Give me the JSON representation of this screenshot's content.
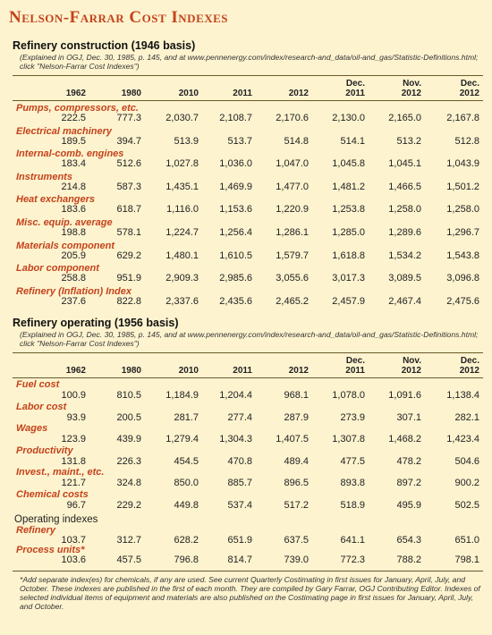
{
  "title": "Nelson-Farrar Cost Indexes",
  "columns": [
    "1962",
    "1980",
    "2010",
    "2011",
    "2012",
    "Dec.\n2011",
    "Nov.\n2012",
    "Dec.\n2012"
  ],
  "construction": {
    "title": "Refinery construction (1946 basis)",
    "note": "(Explained in OGJ, Dec. 30, 1985, p. 145, and at www.pennenergy.com/index/research-and_data/oil-and_gas/Statistic-Definitions.html; click \"Nelson-Farrar Cost Indexes\")",
    "rows": [
      {
        "label": "Pumps, compressors, etc.",
        "values": [
          "222.5",
          "777.3",
          "2,030.7",
          "2,108.7",
          "2,170.6",
          "2,130.0",
          "2,165.0",
          "2,167.8"
        ]
      },
      {
        "label": "Electrical machinery",
        "values": [
          "189.5",
          "394.7",
          "513.9",
          "513.7",
          "514.8",
          "514.1",
          "513.2",
          "512.8"
        ]
      },
      {
        "label": "Internal-comb. engines",
        "values": [
          "183.4",
          "512.6",
          "1,027.8",
          "1,036.0",
          "1,047.0",
          "1,045.8",
          "1,045.1",
          "1,043.9"
        ]
      },
      {
        "label": "Instruments",
        "values": [
          "214.8",
          "587.3",
          "1,435.1",
          "1,469.9",
          "1,477.0",
          "1,481.2",
          "1,466.5",
          "1,501.2"
        ]
      },
      {
        "label": "Heat exchangers",
        "values": [
          "183.6",
          "618.7",
          "1,116.0",
          "1,153.6",
          "1,220.9",
          "1,253.8",
          "1,258.0",
          "1,258.0"
        ]
      },
      {
        "label": "Misc. equip. average",
        "values": [
          "198.8",
          "578.1",
          "1,224.7",
          "1,256.4",
          "1,286.1",
          "1,285.0",
          "1,289.6",
          "1,296.7"
        ]
      },
      {
        "label": "Materials component",
        "values": [
          "205.9",
          "629.2",
          "1,480.1",
          "1,610.5",
          "1,579.7",
          "1,618.8",
          "1,534.2",
          "1,543.8"
        ]
      },
      {
        "label": "Labor component",
        "values": [
          "258.8",
          "951.9",
          "2,909.3",
          "2,985.6",
          "3,055.6",
          "3,017.3",
          "3,089.5",
          "3,096.8"
        ]
      },
      {
        "label": "Refinery (Inflation) Index",
        "values": [
          "237.6",
          "822.8",
          "2,337.6",
          "2,435.6",
          "2,465.2",
          "2,457.9",
          "2,467.4",
          "2,475.6"
        ]
      }
    ]
  },
  "operating": {
    "title": "Refinery operating (1956 basis)",
    "note": "(Explained in OGJ, Dec. 30, 1985, p. 145, and at www.pennenergy.com/index/research-and_data/oil-and_gas/Statistic-Definitions.html; click \"Nelson-Farrar Cost Indexes\")",
    "rows": [
      {
        "label": "Fuel cost",
        "values": [
          "100.9",
          "810.5",
          "1,184.9",
          "1,204.4",
          "968.1",
          "1,078.0",
          "1,091.6",
          "1,138.4"
        ]
      },
      {
        "label": "Labor cost",
        "values": [
          "93.9",
          "200.5",
          "281.7",
          "277.4",
          "287.9",
          "273.9",
          "307.1",
          "282.1"
        ]
      },
      {
        "label": "Wages",
        "values": [
          "123.9",
          "439.9",
          "1,279.4",
          "1,304.3",
          "1,407.5",
          "1,307.8",
          "1,468.2",
          "1,423.4"
        ]
      },
      {
        "label": "Productivity",
        "values": [
          "131.8",
          "226.3",
          "454.5",
          "470.8",
          "489.4",
          "477.5",
          "478.2",
          "504.6"
        ]
      },
      {
        "label": "Invest., maint., etc.",
        "values": [
          "121.7",
          "324.8",
          "850.0",
          "885.7",
          "896.5",
          "893.8",
          "897.2",
          "900.2"
        ]
      },
      {
        "label": "Chemical costs",
        "values": [
          "96.7",
          "229.2",
          "449.8",
          "537.4",
          "517.2",
          "518.9",
          "495.9",
          "502.5"
        ]
      }
    ],
    "subheading": "Operating indexes",
    "index_rows": [
      {
        "label": "Refinery",
        "values": [
          "103.7",
          "312.7",
          "628.2",
          "651.9",
          "637.5",
          "641.1",
          "654.3",
          "651.0"
        ]
      },
      {
        "label": "Process units*",
        "values": [
          "103.6",
          "457.5",
          "796.8",
          "814.7",
          "739.0",
          "772.3",
          "788.2",
          "798.1"
        ]
      }
    ]
  },
  "footnote": "*Add separate index(es) for chemicals, if any are used. See current Quarterly Costimating in first issues for January, April, July, and October. These indexes are published in the first of each month. They are compiled by Gary Farrar, OGJ Contributing Editor. Indexes of selected individual items of equipment and materials are also published on the Costimating page in first issues for January, April, July, and October.",
  "colors": {
    "background": "#fdf3cf",
    "title": "#c4431b",
    "row_label": "#c4431b"
  }
}
